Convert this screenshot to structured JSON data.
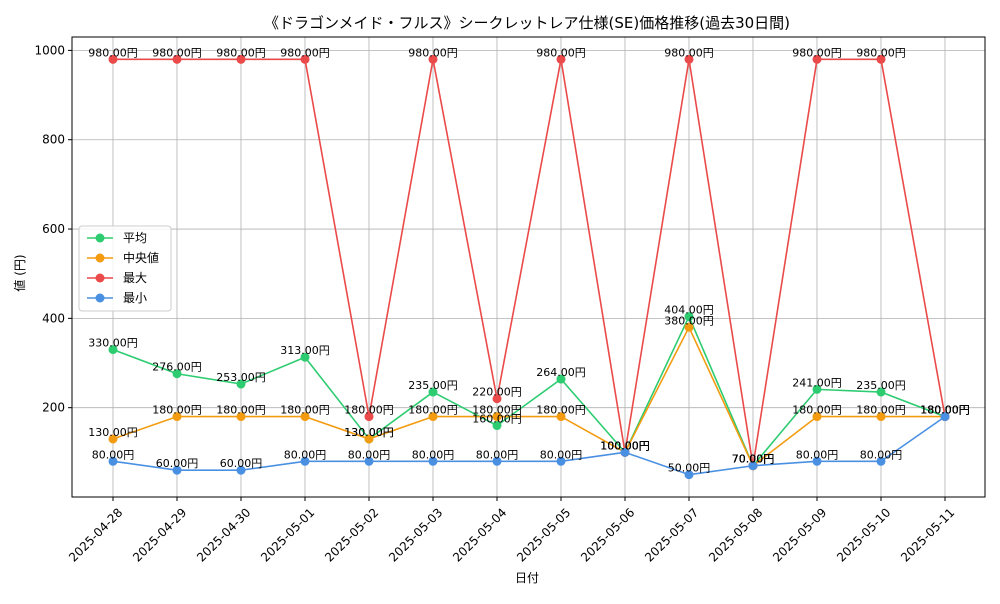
{
  "chart_data": {
    "type": "line",
    "title": "《ドラゴンメイド・フルス》シークレットレア仕様(SE)価格推移(過去30日間)",
    "xlabel": "日付",
    "ylabel": "値 (円)",
    "categories": [
      "2025-04-28",
      "2025-04-29",
      "2025-04-30",
      "2025-05-01",
      "2025-05-02",
      "2025-05-03",
      "2025-05-04",
      "2025-05-05",
      "2025-05-06",
      "2025-05-07",
      "2025-05-08",
      "2025-05-09",
      "2025-05-10",
      "2025-05-11"
    ],
    "ylim": [
      0,
      1030
    ],
    "yticks": [
      200,
      400,
      600,
      800,
      1000
    ],
    "grid": true,
    "legend_position": "center-left",
    "label_suffix": "円",
    "series": [
      {
        "name": "平均",
        "color": "#2ecc71",
        "values": [
          330,
          276,
          253,
          313,
          130,
          235,
          160,
          264,
          100,
          404,
          70,
          241,
          235,
          180
        ]
      },
      {
        "name": "中央値",
        "color": "#f39c12",
        "values": [
          130,
          180,
          180,
          180,
          130,
          180,
          180,
          180,
          100,
          380,
          70,
          180,
          180,
          180
        ]
      },
      {
        "name": "最大",
        "color": "#ea4a4a",
        "values": [
          980,
          980,
          980,
          980,
          180,
          980,
          220,
          980,
          100,
          980,
          70,
          980,
          980,
          180
        ]
      },
      {
        "name": "最小",
        "color": "#4a90e2",
        "values": [
          80,
          60,
          60,
          80,
          80,
          80,
          80,
          80,
          100,
          50,
          70,
          80,
          80,
          180
        ]
      }
    ]
  }
}
